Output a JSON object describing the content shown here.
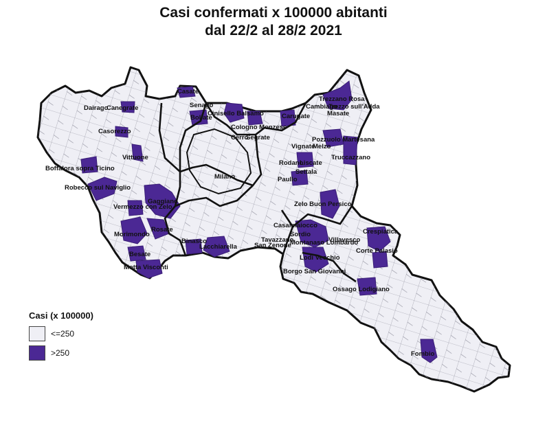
{
  "title_line1": "Casi confermati x 100000 abitanti",
  "title_line2": "dal 22/2 al 28/2 2021",
  "colors": {
    "low": "#efeff5",
    "high": "#4b2894",
    "border": "#111111"
  },
  "legend": {
    "title": "Casi (x 100000)",
    "items": [
      {
        "label": "<=250",
        "color": "#efeff5"
      },
      {
        "label": ">250",
        "color": "#4b2894"
      }
    ]
  },
  "labels": [
    {
      "text": "Casate"
    },
    {
      "text": "Dairago"
    },
    {
      "text": "Canegrate"
    },
    {
      "text": "Senago"
    },
    {
      "text": "Bollate"
    },
    {
      "text": "Cinisello Balsamo"
    },
    {
      "text": "Cologno Monzese"
    },
    {
      "text": "Carugate"
    },
    {
      "text": "Trezzano Rosa"
    },
    {
      "text": "Cambiago"
    },
    {
      "text": "Trezzo sull'Adda"
    },
    {
      "text": "Masate"
    },
    {
      "text": "Casorezzo"
    },
    {
      "text": "Vittuone"
    },
    {
      "text": "Boffalora sopra Ticino"
    },
    {
      "text": "Robecco sul Naviglio"
    },
    {
      "text": "Gaggiano"
    },
    {
      "text": "Vermezzo con Zelo"
    },
    {
      "text": "Morimondo"
    },
    {
      "text": "Rosate"
    },
    {
      "text": "Besate"
    },
    {
      "text": "Motta Visconti"
    },
    {
      "text": "Binasco"
    },
    {
      "text": "Lacchiarella"
    },
    {
      "text": "Pozzuolo Martesana"
    },
    {
      "text": "Vignate"
    },
    {
      "text": "Melzo"
    },
    {
      "text": "Truccazzano"
    },
    {
      "text": "Rodano"
    },
    {
      "text": "Liscate"
    },
    {
      "text": "Settala"
    },
    {
      "text": "Paullo"
    },
    {
      "text": "Zelo Buon Persico"
    },
    {
      "text": "Casalmaiocco"
    },
    {
      "text": "Sordio"
    },
    {
      "text": "Tavazzano"
    },
    {
      "text": "San Zenone"
    },
    {
      "text": "Montanaso Lombardo"
    },
    {
      "text": "Villavesco"
    },
    {
      "text": "Lodi Vecchio"
    },
    {
      "text": "Borgo San Giovanni"
    },
    {
      "text": "Ossago Lodigiano"
    },
    {
      "text": "Crespiatica"
    },
    {
      "text": "Corte Palasio"
    },
    {
      "text": "Fombio"
    },
    {
      "text": "Cerro"
    },
    {
      "text": "Segrate"
    },
    {
      "text": "Milano"
    }
  ]
}
